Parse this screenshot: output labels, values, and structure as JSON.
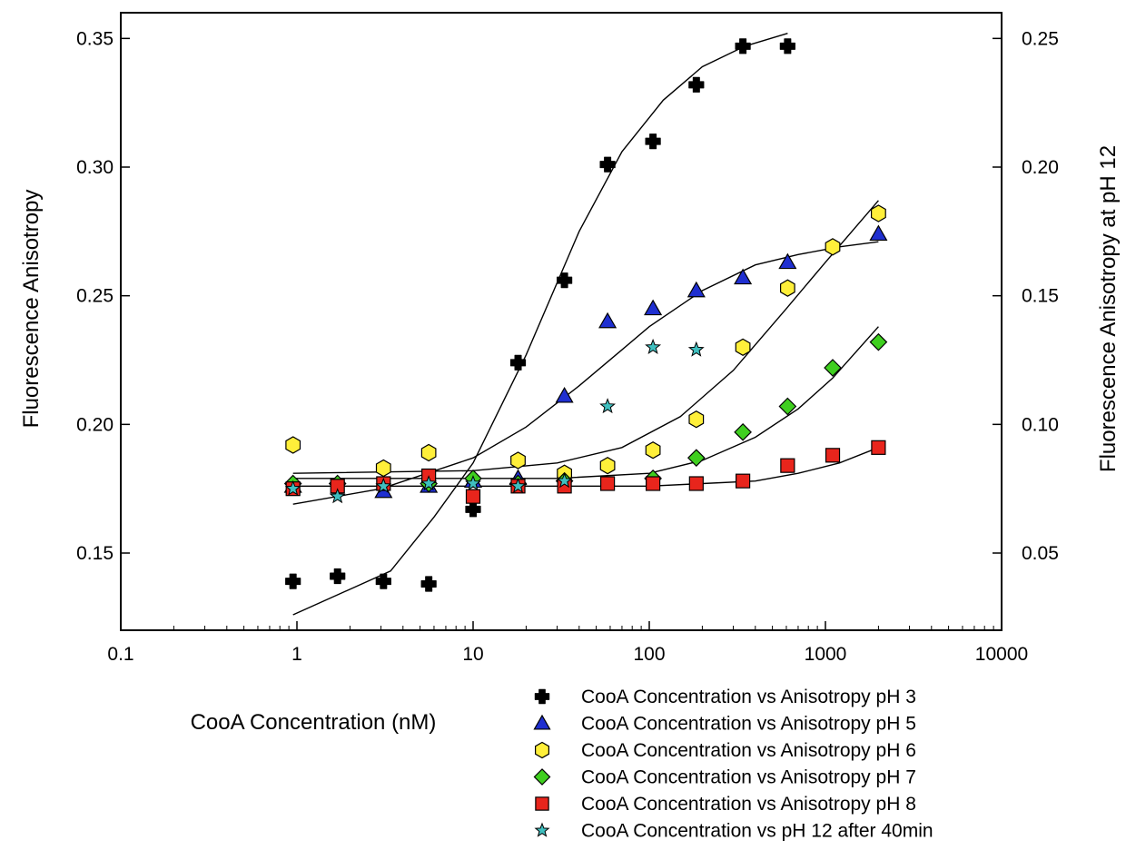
{
  "chart_data": {
    "type": "scatter",
    "title": "",
    "xlabel": "CooA Concentration (nM)",
    "ylabel": "Fluorescence Anisotropy",
    "y2label": "Fluorescence Anisotropy at pH 12",
    "xscale": "log",
    "xlim": [
      0.1,
      10000
    ],
    "ylim": [
      0.12,
      0.36
    ],
    "y2lim": [
      0.02,
      0.26
    ],
    "xticks": [
      0.1,
      1,
      10,
      100,
      1000,
      10000
    ],
    "xtick_labels": [
      "0.1",
      "1",
      "10",
      "100",
      "1000",
      "10000"
    ],
    "yticks": [
      0.15,
      0.2,
      0.25,
      0.3,
      0.35
    ],
    "ytick_labels": [
      "0.15",
      "0.20",
      "0.25",
      "0.30",
      "0.35"
    ],
    "y2ticks": [
      0.05,
      0.1,
      0.15,
      0.2,
      0.25
    ],
    "y2tick_labels": [
      "0.05",
      "0.10",
      "0.15",
      "0.20",
      "0.25"
    ],
    "grid": false,
    "legend_position": "bottom-right",
    "series": [
      {
        "name": "CooA Concentration vs Anisotropy pH 3",
        "marker": "cross",
        "color": "#000000",
        "axis": "left",
        "x": [
          0.95,
          1.7,
          3.1,
          5.6,
          10,
          18,
          33,
          58,
          105,
          185,
          340,
          610
        ],
        "y": [
          0.139,
          0.141,
          0.139,
          0.138,
          0.167,
          0.224,
          0.256,
          0.301,
          0.31,
          0.332,
          0.347,
          0.347
        ],
        "fit_x": [
          0.95,
          3.4,
          6,
          10,
          20,
          40,
          70,
          120,
          200,
          350,
          610
        ],
        "fit_y": [
          0.126,
          0.143,
          0.164,
          0.185,
          0.227,
          0.275,
          0.306,
          0.326,
          0.339,
          0.347,
          0.352
        ]
      },
      {
        "name": "CooA Concentration vs Anisotropy pH 5",
        "marker": "triangle",
        "color": "#1f2fd0",
        "axis": "left",
        "x": [
          0.95,
          3.1,
          5.6,
          10,
          18,
          33,
          58,
          105,
          185,
          340,
          610,
          2000
        ],
        "y": [
          0.176,
          0.174,
          0.176,
          0.178,
          0.179,
          0.211,
          0.24,
          0.245,
          0.252,
          0.257,
          0.263,
          0.274
        ],
        "fit_x": [
          0.95,
          3,
          10,
          20,
          40,
          70,
          100,
          200,
          400,
          700,
          1200,
          2000
        ],
        "fit_y": [
          0.169,
          0.175,
          0.187,
          0.199,
          0.215,
          0.229,
          0.238,
          0.252,
          0.262,
          0.266,
          0.269,
          0.271
        ]
      },
      {
        "name": "CooA Concentration vs Anisotropy pH 6",
        "marker": "hexagon",
        "color": "#ffef3a",
        "axis": "left",
        "x": [
          0.95,
          3.1,
          5.6,
          18,
          33,
          58,
          105,
          185,
          340,
          610,
          1100,
          2000
        ],
        "y": [
          0.192,
          0.183,
          0.189,
          0.186,
          0.181,
          0.184,
          0.19,
          0.202,
          0.23,
          0.253,
          0.269,
          0.282
        ],
        "fit_x": [
          0.95,
          10,
          30,
          70,
          150,
          300,
          600,
          1000,
          2000
        ],
        "fit_y": [
          0.181,
          0.182,
          0.185,
          0.191,
          0.203,
          0.221,
          0.245,
          0.263,
          0.287
        ]
      },
      {
        "name": "CooA Concentration vs Anisotropy pH 7",
        "marker": "diamond",
        "color": "#3fcf1f",
        "axis": "left",
        "x": [
          0.95,
          1.7,
          5.6,
          10,
          18,
          33,
          105,
          185,
          340,
          610,
          1100,
          2000
        ],
        "y": [
          0.177,
          0.177,
          0.177,
          0.179,
          0.177,
          0.178,
          0.179,
          0.187,
          0.197,
          0.207,
          0.222,
          0.232
        ],
        "fit_x": [
          0.95,
          10,
          30,
          100,
          200,
          400,
          700,
          1100,
          2000
        ],
        "fit_y": [
          0.179,
          0.179,
          0.179,
          0.181,
          0.186,
          0.195,
          0.206,
          0.218,
          0.238
        ]
      },
      {
        "name": "CooA Concentration vs Anisotropy pH 8",
        "marker": "square",
        "color": "#e8251c",
        "axis": "left",
        "x": [
          0.95,
          1.7,
          3.1,
          5.6,
          10,
          18,
          33,
          58,
          105,
          185,
          340,
          610,
          1100,
          2000
        ],
        "y": [
          0.175,
          0.176,
          0.177,
          0.18,
          0.172,
          0.176,
          0.176,
          0.177,
          0.177,
          0.177,
          0.178,
          0.184,
          0.188,
          0.191
        ],
        "fit_x": [
          0.95,
          10,
          50,
          100,
          200,
          400,
          700,
          1200,
          2000
        ],
        "fit_y": [
          0.176,
          0.176,
          0.176,
          0.176,
          0.177,
          0.178,
          0.181,
          0.185,
          0.191
        ]
      },
      {
        "name": "CooA Concentration vs pH 12 after 40min",
        "marker": "star",
        "color": "#3fbfbf",
        "axis": "right",
        "x": [
          0.95,
          1.7,
          3.1,
          5.6,
          10,
          18,
          33,
          58,
          105,
          185
        ],
        "y": [
          0.075,
          0.072,
          0.076,
          0.077,
          0.077,
          0.076,
          0.078,
          0.107,
          0.13,
          0.129
        ]
      }
    ]
  }
}
